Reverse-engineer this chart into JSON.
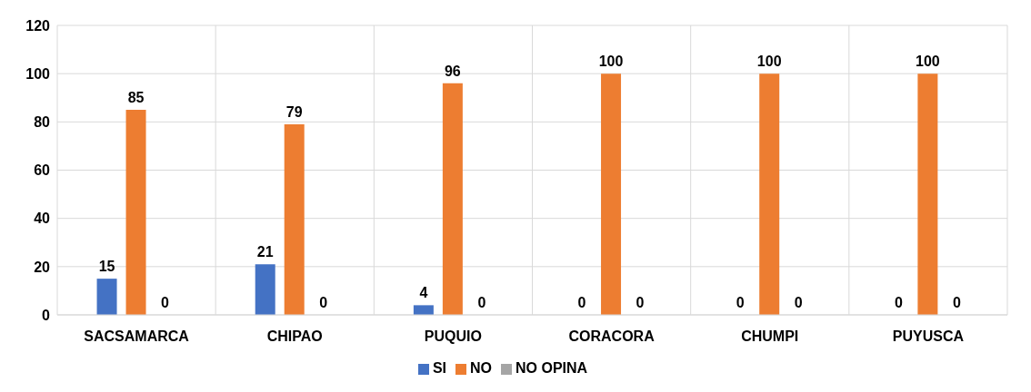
{
  "chart_data": {
    "type": "bar",
    "categories": [
      "SACSAMARCA",
      "CHIPAO",
      "PUQUIO",
      "CORACORA",
      "CHUMPI",
      "PUYUSCA"
    ],
    "series": [
      {
        "name": "SI",
        "color": "#4472c4",
        "values": [
          15,
          21,
          4,
          0,
          0,
          0
        ]
      },
      {
        "name": "NO",
        "color": "#ed7d31",
        "values": [
          85,
          79,
          96,
          100,
          100,
          100
        ]
      },
      {
        "name": "NO OPINA",
        "color": "#a5a5a5",
        "values": [
          0,
          0,
          0,
          0,
          0,
          0
        ]
      }
    ],
    "ylim": [
      0,
      120
    ],
    "yticks": [
      0,
      20,
      40,
      60,
      80,
      100,
      120
    ],
    "grid": true,
    "legend": "bottom",
    "data_labels": true
  }
}
